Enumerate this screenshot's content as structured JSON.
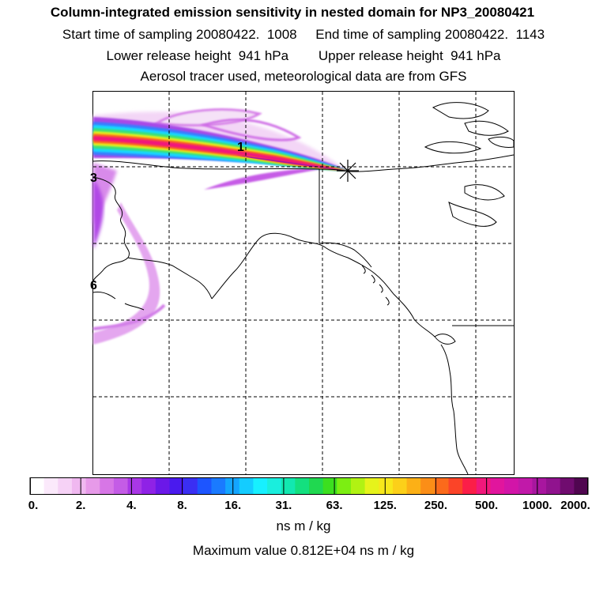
{
  "header": {
    "title": "Column-integrated emission sensitivity in nested domain for NP3_20080421",
    "start_label": "Start time of sampling 20080422.  1008",
    "end_label": "End time of sampling 20080422.  1143",
    "lower_label": "Lower release height  941 hPa",
    "upper_label": "Upper release height  941 hPa",
    "tracer_label": "Aerosol tracer used, meteorological data are from GFS"
  },
  "map": {
    "day_labels": [
      "1",
      "3",
      "6"
    ],
    "release_marker": "star-cross-icon"
  },
  "colorbar": {
    "ticks": [
      "0.",
      "2.",
      "4.",
      "8.",
      "16.",
      "31.",
      "63.",
      "125.",
      "250.",
      "500.",
      "1000.",
      "2000."
    ],
    "colors": [
      "#ffffff",
      "#fbe9fb",
      "#f6d2f6",
      "#f0b8f0",
      "#e79ae9",
      "#d776e6",
      "#c45ce6",
      "#a937e6",
      "#8f22e6",
      "#6b18e8",
      "#4a1aee",
      "#3a2ff3",
      "#1d55ff",
      "#1a7aff",
      "#14a5ff",
      "#14ccff",
      "#17f0ff",
      "#1aeedd",
      "#12e8b0",
      "#13e07f",
      "#20d850",
      "#3cdf1f",
      "#7cee12",
      "#b1f213",
      "#e6f31b",
      "#f7e81b",
      "#fcd019",
      "#fcb016",
      "#fb8e17",
      "#fb6a1b",
      "#fb4428",
      "#fb1e48",
      "#f1187b",
      "#e1159d",
      "#d215a8",
      "#c119a9",
      "#a8169f",
      "#90138e",
      "#700c6f",
      "#500650"
    ],
    "units": "ns m / kg"
  },
  "footer": {
    "max_value_label": "Maximum value  0.812E+04 ns m / kg"
  }
}
